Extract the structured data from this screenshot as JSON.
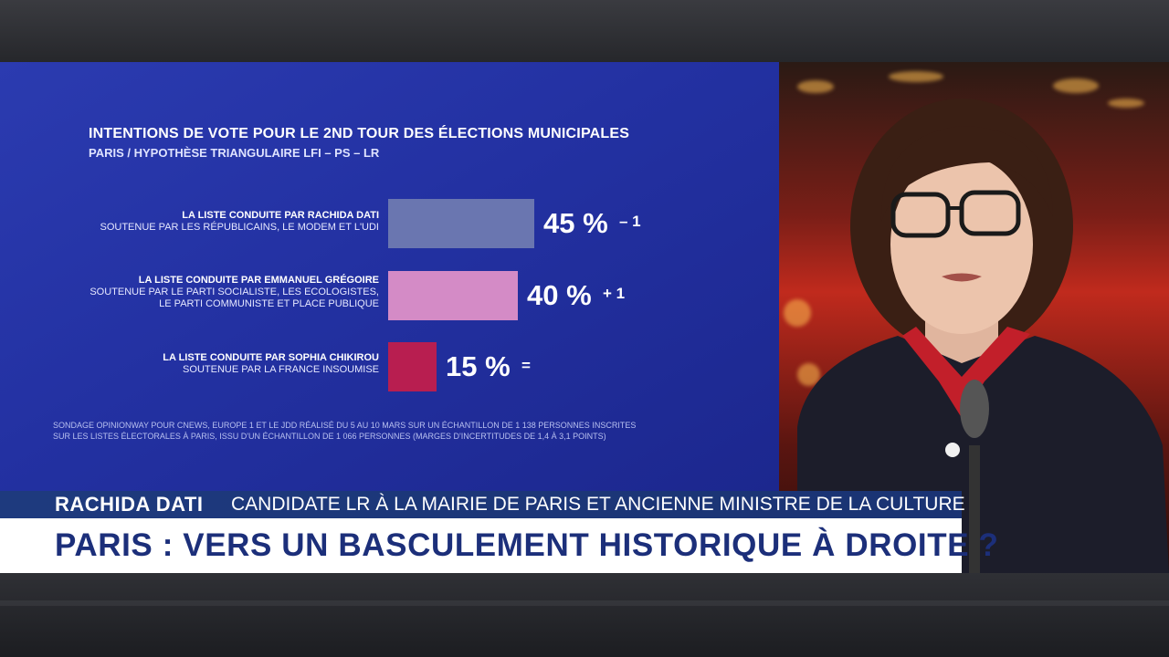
{
  "lower_third": {
    "name": "RACHIDA DATI",
    "role": "CANDIDATE LR À LA MAIRIE DE PARIS ET ANCIENNE MINISTRE DE LA CULTURE",
    "headline": "PARIS : VERS UN BASCULEMENT HISTORIQUE À DROITE ?"
  },
  "colors": {
    "panel_blue": "#2331a2",
    "name_bar_blue": "#1e3a7e",
    "headline_text": "#1c2f7a"
  },
  "chart_data": {
    "type": "bar",
    "orientation": "horizontal",
    "title": "INTENTIONS DE VOTE POUR LE 2ND TOUR DES ÉLECTIONS MUNICIPALES",
    "subtitle": "PARIS / HYPOTHÈSE TRIANGULAIRE LFI – PS – LR",
    "categories": [
      {
        "name": "LA LISTE CONDUITE PAR RACHIDA DATI",
        "support": [
          "SOUTENUE PAR LES RÉPUBLICAINS, LE MODEM ET L'UDI"
        ],
        "value": 45,
        "value_label": "45 %",
        "change": "– 1",
        "color": "#6a76b0"
      },
      {
        "name": "LA LISTE CONDUITE PAR EMMANUEL GRÉGOIRE",
        "support": [
          "SOUTENUE PAR LE PARTI SOCIALISTE, LES ECOLOGISTES,",
          "LE PARTI COMMUNISTE ET PLACE PUBLIQUE"
        ],
        "value": 40,
        "value_label": "40 %",
        "change": "+ 1",
        "color": "#d48bc6"
      },
      {
        "name": "LA LISTE CONDUITE PAR  SOPHIA CHIKIROU",
        "support": [
          "SOUTENUE PAR LA FRANCE INSOUMISE"
        ],
        "value": 15,
        "value_label": "15 %",
        "change": "=",
        "color": "#b81e50"
      }
    ],
    "xlim": [
      0,
      100
    ],
    "source": [
      "SONDAGE OPINIONWAY POUR CNEWS, EUROPE 1 ET LE JDD RÉALISÉ DU 5 AU 10 MARS SUR UN ÉCHANTILLON DE 1 138 PERSONNES INSCRITES",
      "SUR LES LISTES ÉLECTORALES À PARIS, ISSU D'UN ÉCHANTILLON DE 1 066 PERSONNES (MARGES D'INCERTITUDES DE 1,4 À 3,1 POINTS)"
    ]
  }
}
